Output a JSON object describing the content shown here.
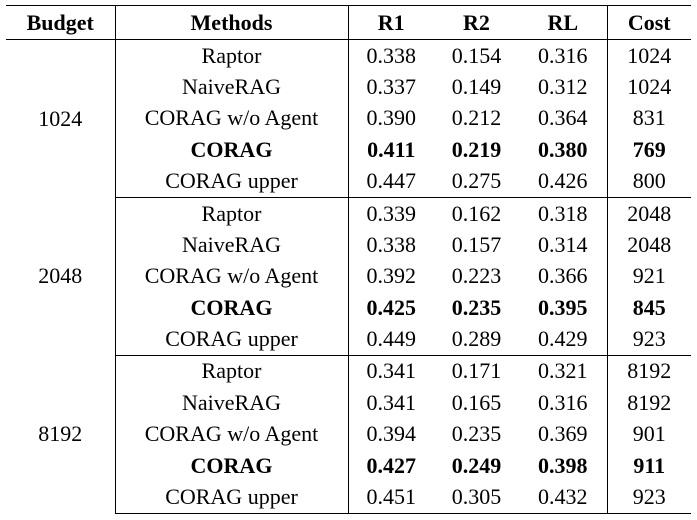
{
  "table": {
    "headers": [
      "Budget",
      "Methods",
      "R1",
      "R2",
      "RL",
      "Cost"
    ],
    "groups": [
      {
        "budget": "1024",
        "rows": [
          {
            "method": "Raptor",
            "r1": "0.338",
            "r2": "0.154",
            "rl": "0.316",
            "cost": "1024",
            "bold": false
          },
          {
            "method": "NaiveRAG",
            "r1": "0.337",
            "r2": "0.149",
            "rl": "0.312",
            "cost": "1024",
            "bold": false
          },
          {
            "method": "CORAG w/o Agent",
            "r1": "0.390",
            "r2": "0.212",
            "rl": "0.364",
            "cost": "831",
            "bold": false
          },
          {
            "method": "CORAG",
            "r1": "0.411",
            "r2": "0.219",
            "rl": "0.380",
            "cost": "769",
            "bold": true
          },
          {
            "method": "CORAG upper",
            "r1": "0.447",
            "r2": "0.275",
            "rl": "0.426",
            "cost": "800",
            "bold": false
          }
        ]
      },
      {
        "budget": "2048",
        "rows": [
          {
            "method": "Raptor",
            "r1": "0.339",
            "r2": "0.162",
            "rl": "0.318",
            "cost": "2048",
            "bold": false
          },
          {
            "method": "NaiveRAG",
            "r1": "0.338",
            "r2": "0.157",
            "rl": "0.314",
            "cost": "2048",
            "bold": false
          },
          {
            "method": "CORAG w/o Agent",
            "r1": "0.392",
            "r2": "0.223",
            "rl": "0.366",
            "cost": "921",
            "bold": false
          },
          {
            "method": "CORAG",
            "r1": "0.425",
            "r2": "0.235",
            "rl": "0.395",
            "cost": "845",
            "bold": true
          },
          {
            "method": "CORAG upper",
            "r1": "0.449",
            "r2": "0.289",
            "rl": "0.429",
            "cost": "923",
            "bold": false
          }
        ]
      },
      {
        "budget": "8192",
        "rows": [
          {
            "method": "Raptor",
            "r1": "0.341",
            "r2": "0.171",
            "rl": "0.321",
            "cost": "8192",
            "bold": false
          },
          {
            "method": "NaiveRAG",
            "r1": "0.341",
            "r2": "0.165",
            "rl": "0.316",
            "cost": "8192",
            "bold": false
          },
          {
            "method": "CORAG w/o Agent",
            "r1": "0.394",
            "r2": "0.235",
            "rl": "0.369",
            "cost": "901",
            "bold": false
          },
          {
            "method": "CORAG",
            "r1": "0.427",
            "r2": "0.249",
            "rl": "0.398",
            "cost": "911",
            "bold": true
          },
          {
            "method": "CORAG upper",
            "r1": "0.451",
            "r2": "0.305",
            "rl": "0.432",
            "cost": "923",
            "bold": false
          }
        ]
      }
    ]
  }
}
